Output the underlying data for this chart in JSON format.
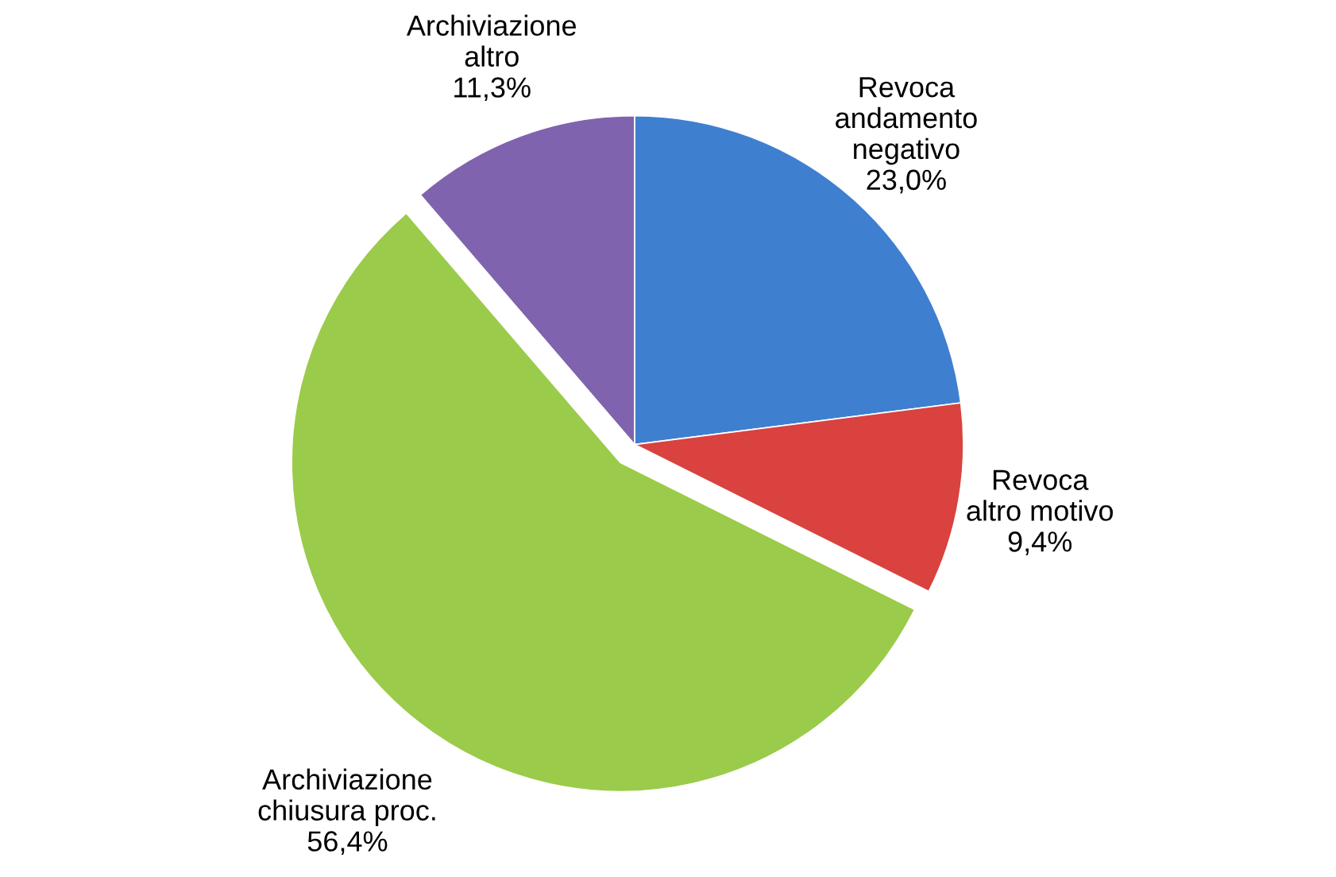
{
  "chart_data": {
    "type": "pie",
    "categories": [
      "Revoca andamento negativo",
      "Revoca altro motivo",
      "Archiviazione chiusura proc.",
      "Archiviazione altro"
    ],
    "values": [
      23.0,
      9.4,
      56.4,
      11.3
    ],
    "colors": [
      "#3f7fd0",
      "#d9423e",
      "#9bcb4a",
      "#8063ae"
    ],
    "value_labels": [
      "23,0%",
      "9,4%",
      "56,4%",
      "11,3%"
    ]
  }
}
